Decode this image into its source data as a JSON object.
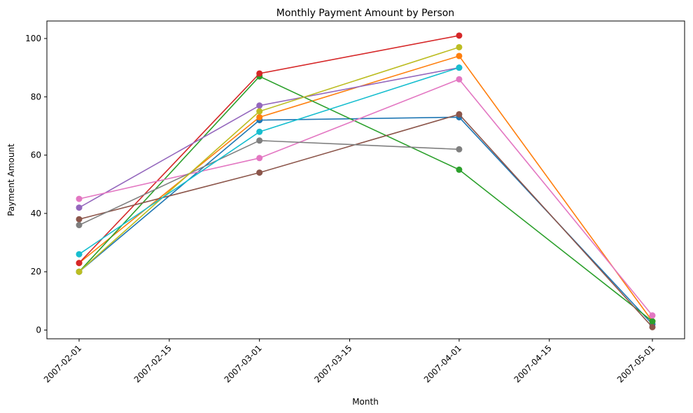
{
  "chart_data": {
    "type": "line",
    "title": "Monthly Payment Amount by Person",
    "xlabel": "Month",
    "ylabel": "Payment Amount",
    "x_ticks": [
      "2007-02-01",
      "2007-02-15",
      "2007-03-01",
      "2007-03-15",
      "2007-04-01",
      "2007-04-15",
      "2007-05-01"
    ],
    "xlim": [
      "2007-01-27",
      "2007-05-06"
    ],
    "y_ticks": [
      0,
      20,
      40,
      60,
      80,
      100
    ],
    "ylim": [
      -3,
      106
    ],
    "grid": false,
    "legend": "none",
    "series": [
      {
        "color": "#1f77b4",
        "points": [
          {
            "x": "2007-02-01",
            "y": 20
          },
          {
            "x": "2007-03-01",
            "y": 72
          },
          {
            "x": "2007-04-01",
            "y": 73
          },
          {
            "x": "2007-05-01",
            "y": 2
          }
        ]
      },
      {
        "color": "#ff7f0e",
        "points": [
          {
            "x": "2007-02-01",
            "y": 23
          },
          {
            "x": "2007-03-01",
            "y": 73
          },
          {
            "x": "2007-04-01",
            "y": 94
          },
          {
            "x": "2007-05-01",
            "y": 3
          }
        ]
      },
      {
        "color": "#2ca02c",
        "points": [
          {
            "x": "2007-02-01",
            "y": 20
          },
          {
            "x": "2007-03-01",
            "y": 87
          },
          {
            "x": "2007-04-01",
            "y": 55
          },
          {
            "x": "2007-05-01",
            "y": 3
          }
        ]
      },
      {
        "color": "#d62728",
        "points": [
          {
            "x": "2007-02-01",
            "y": 23
          },
          {
            "x": "2007-03-01",
            "y": 88
          },
          {
            "x": "2007-04-01",
            "y": 101
          }
        ]
      },
      {
        "color": "#9467bd",
        "points": [
          {
            "x": "2007-02-01",
            "y": 42
          },
          {
            "x": "2007-03-01",
            "y": 77
          },
          {
            "x": "2007-04-01",
            "y": 90
          }
        ]
      },
      {
        "color": "#8c564b",
        "points": [
          {
            "x": "2007-02-01",
            "y": 38
          },
          {
            "x": "2007-03-01",
            "y": 54
          },
          {
            "x": "2007-04-01",
            "y": 74
          },
          {
            "x": "2007-05-01",
            "y": 1
          }
        ]
      },
      {
        "color": "#e377c2",
        "points": [
          {
            "x": "2007-02-01",
            "y": 45
          },
          {
            "x": "2007-03-01",
            "y": 59
          },
          {
            "x": "2007-04-01",
            "y": 86
          },
          {
            "x": "2007-05-01",
            "y": 5
          }
        ]
      },
      {
        "color": "#7f7f7f",
        "points": [
          {
            "x": "2007-02-01",
            "y": 36
          },
          {
            "x": "2007-03-01",
            "y": 65
          },
          {
            "x": "2007-04-01",
            "y": 62
          }
        ]
      },
      {
        "color": "#bcbd22",
        "points": [
          {
            "x": "2007-02-01",
            "y": 20
          },
          {
            "x": "2007-03-01",
            "y": 75
          },
          {
            "x": "2007-04-01",
            "y": 97
          }
        ]
      },
      {
        "color": "#17becf",
        "points": [
          {
            "x": "2007-02-01",
            "y": 26
          },
          {
            "x": "2007-03-01",
            "y": 68
          },
          {
            "x": "2007-04-01",
            "y": 90
          }
        ]
      }
    ]
  }
}
